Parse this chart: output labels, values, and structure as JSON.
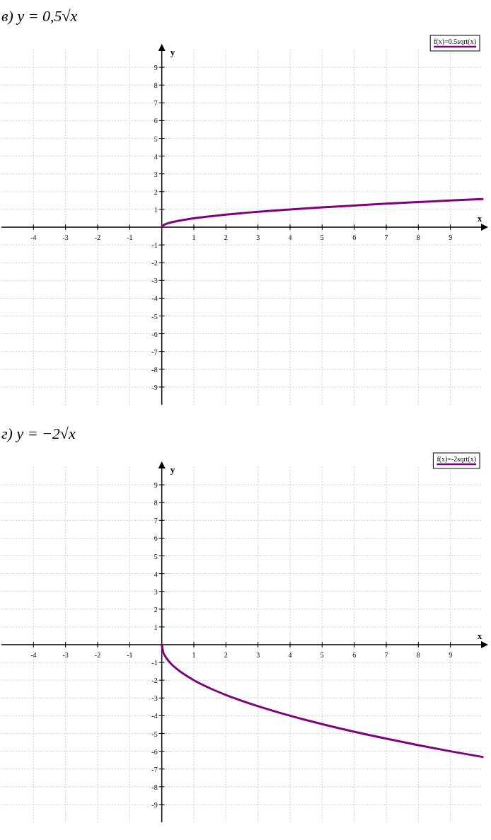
{
  "chart_data": [
    {
      "type": "line",
      "title": "в) y = 0,5√x",
      "xlabel": "x",
      "ylabel": "y",
      "xlim": [
        -5,
        10
      ],
      "ylim": [
        -10,
        10
      ],
      "xticks": [
        -4,
        -3,
        -2,
        -1,
        1,
        2,
        3,
        4,
        5,
        6,
        7,
        8,
        9
      ],
      "yticks": [
        -9,
        -8,
        -7,
        -6,
        -5,
        -4,
        -3,
        -2,
        -1,
        1,
        2,
        3,
        4,
        5,
        6,
        7,
        8,
        9
      ],
      "grid": true,
      "legend": "top right",
      "series": [
        {
          "name": "f(x)=0.5sqrt(x)",
          "color": "#800080",
          "x": [
            0,
            0.05,
            0.1,
            0.25,
            0.5,
            1,
            1.5,
            2,
            3,
            4,
            5,
            6,
            7,
            8,
            9,
            10
          ],
          "values": [
            0,
            0.11,
            0.16,
            0.25,
            0.35,
            0.5,
            0.61,
            0.71,
            0.87,
            1,
            1.12,
            1.22,
            1.32,
            1.41,
            1.5,
            1.58
          ]
        }
      ]
    },
    {
      "type": "line",
      "title": "г) y = −2√x",
      "xlabel": "x",
      "ylabel": "y",
      "xlim": [
        -5,
        10
      ],
      "ylim": [
        -10,
        10
      ],
      "xticks": [
        -4,
        -3,
        -2,
        -1,
        1,
        2,
        3,
        4,
        5,
        6,
        7,
        8,
        9
      ],
      "yticks": [
        -9,
        -8,
        -7,
        -6,
        -5,
        -4,
        -3,
        -2,
        -1,
        1,
        2,
        3,
        4,
        5,
        6,
        7,
        8,
        9
      ],
      "grid": true,
      "legend": "top right",
      "series": [
        {
          "name": "f(x)=-2sqrt(x)",
          "color": "#800080",
          "x": [
            0,
            0.05,
            0.1,
            0.25,
            0.5,
            1,
            1.5,
            2,
            3,
            4,
            5,
            6,
            7,
            8,
            9,
            10
          ],
          "values": [
            0,
            -0.45,
            -0.63,
            -1,
            -1.41,
            -2,
            -2.45,
            -2.83,
            -3.46,
            -4,
            -4.47,
            -4.9,
            -5.29,
            -5.66,
            -6,
            -6.32
          ]
        }
      ]
    }
  ]
}
